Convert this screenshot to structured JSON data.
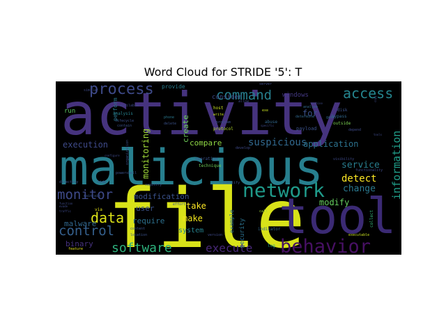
{
  "chart_data": {
    "type": "wordcloud",
    "title": "Word Cloud for STRIDE '5': T",
    "background": "#000000",
    "palette": "viridis",
    "words": [
      {
        "text": "activity",
        "size": 1.0,
        "color": "#46337e"
      },
      {
        "text": "malicious",
        "size": 0.84,
        "color": "#277f8e"
      },
      {
        "text": "file",
        "size": 0.86,
        "color": "#d8e219"
      },
      {
        "text": "tool",
        "size": 0.62,
        "color": "#3b2a74"
      },
      {
        "text": "behavior",
        "size": 0.3,
        "color": "#471063"
      },
      {
        "text": "network",
        "size": 0.32,
        "color": "#1f9a8a"
      },
      {
        "text": "process",
        "size": 0.24,
        "color": "#3e4a89"
      },
      {
        "text": "command",
        "size": 0.22,
        "color": "#277f8e"
      },
      {
        "text": "access",
        "size": 0.22,
        "color": "#25858e"
      },
      {
        "text": "monitor",
        "size": 0.21,
        "color": "#3e4a89"
      },
      {
        "text": "control",
        "size": 0.2,
        "color": "#35608d"
      },
      {
        "text": "data",
        "size": 0.2,
        "color": "#dde318"
      },
      {
        "text": "software",
        "size": 0.19,
        "color": "#2db27d"
      },
      {
        "text": "execute",
        "size": 0.17,
        "color": "#482878"
      },
      {
        "text": "information",
        "size": 0.16,
        "color": "#1f9e89"
      },
      {
        "text": "suspicious",
        "size": 0.15,
        "color": "#31688e"
      },
      {
        "text": "detect",
        "size": 0.14,
        "color": "#fde725"
      },
      {
        "text": "change",
        "size": 0.13,
        "color": "#2a788e"
      },
      {
        "text": "service",
        "size": 0.13,
        "color": "#287d8e"
      },
      {
        "text": "modify",
        "size": 0.12,
        "color": "#65cb5e"
      },
      {
        "text": "application",
        "size": 0.12,
        "color": "#2c728e"
      },
      {
        "text": "execution",
        "size": 0.12,
        "color": "#3e4a89"
      },
      {
        "text": "compare",
        "size": 0.11,
        "color": "#8fd744"
      },
      {
        "text": "modification",
        "size": 0.11,
        "color": "#3b528b"
      },
      {
        "text": "monitoring",
        "size": 0.12,
        "color": "#a0da39"
      },
      {
        "text": "binary",
        "size": 0.11,
        "color": "#46327e"
      },
      {
        "text": "malware",
        "size": 0.1,
        "color": "#31688e"
      },
      {
        "text": "take",
        "size": 0.12,
        "color": "#fde725"
      },
      {
        "text": "make",
        "size": 0.12,
        "color": "#f1e51d"
      },
      {
        "text": "user",
        "size": 0.11,
        "color": "#3b528b"
      },
      {
        "text": "require",
        "size": 0.11,
        "color": "#2d708e"
      },
      {
        "text": "system",
        "size": 0.1,
        "color": "#26828e"
      },
      {
        "text": "for",
        "size": 0.12,
        "color": "#3b528b"
      },
      {
        "text": "create",
        "size": 0.12,
        "color": "#6ece58"
      },
      {
        "text": "windows",
        "size": 0.09,
        "color": "#443983"
      },
      {
        "text": "consider",
        "size": 0.09,
        "color": "#3e4a89"
      },
      {
        "text": "provide",
        "size": 0.08,
        "color": "#287d8e"
      },
      {
        "text": "perform",
        "size": 0.08,
        "color": "#2a788e"
      },
      {
        "text": "run",
        "size": 0.09,
        "color": "#5ec962"
      },
      {
        "text": "security",
        "size": 0.09,
        "color": "#2c728e"
      },
      {
        "text": "example",
        "size": 0.08,
        "color": "#2d708e"
      },
      {
        "text": "payload",
        "size": 0.07,
        "color": "#3b528b"
      },
      {
        "text": "bypass",
        "size": 0.06,
        "color": "#31688e"
      },
      {
        "text": "outside",
        "size": 0.06,
        "color": "#7ad151"
      },
      {
        "text": "abuse",
        "size": 0.06,
        "color": "#31688e"
      },
      {
        "text": "indicator",
        "size": 0.06,
        "color": "#31688e"
      },
      {
        "text": "collect",
        "size": 0.06,
        "color": "#35b779"
      },
      {
        "text": "protocol",
        "size": 0.06,
        "color": "#b5de2b"
      },
      {
        "text": "host",
        "size": 0.06,
        "color": "#c8e020"
      },
      {
        "text": "write",
        "size": 0.05,
        "color": "#c8e020"
      },
      {
        "text": "analyze",
        "size": 0.05,
        "color": "#31688e"
      },
      {
        "text": "analysis",
        "size": 0.06,
        "color": "#26828e"
      },
      {
        "text": "operation",
        "size": 0.06,
        "color": "#3b528b"
      },
      {
        "text": "technique",
        "size": 0.06,
        "color": "#6ece58"
      },
      {
        "text": "effort",
        "size": 0.05,
        "color": "#3b528b"
      },
      {
        "text": "registry",
        "size": 0.05,
        "color": "#3b528b"
      },
      {
        "text": "disk",
        "size": 0.06,
        "color": "#3b528b"
      },
      {
        "text": "visibility",
        "size": 0.05,
        "color": "#3e4a89"
      },
      {
        "text": "functionality",
        "size": 0.05,
        "color": "#3e4a89"
      },
      {
        "text": "depend",
        "size": 0.05,
        "color": "#3e4a89"
      },
      {
        "text": "log",
        "size": 0.06,
        "color": "#20a486"
      },
      {
        "text": "call",
        "size": 0.05,
        "color": "#9fda3a"
      },
      {
        "text": "gain",
        "size": 0.05,
        "color": "#31688e"
      },
      {
        "text": "exe",
        "size": 0.05,
        "color": "#c8e020"
      },
      {
        "text": "determine",
        "size": 0.05,
        "color": "#31688e"
      },
      {
        "text": "program",
        "size": 0.05,
        "color": "#3b528b"
      },
      {
        "text": "delete",
        "size": 0.05,
        "color": "#3b528b"
      },
      {
        "text": "phone",
        "size": 0.05,
        "color": "#2a788e"
      },
      {
        "text": "lifecycle",
        "size": 0.05,
        "color": "#3b528b"
      },
      {
        "text": "contain",
        "size": 0.05,
        "color": "#3b528b"
      },
      {
        "text": "organization",
        "size": 0.05,
        "color": "#3b528b"
      },
      {
        "text": "powershell",
        "size": 0.05,
        "color": "#3b528b"
      },
      {
        "text": "maintain",
        "size": 0.05,
        "color": "#3b528b"
      },
      {
        "text": "hide",
        "size": 0.05,
        "color": "#3b528b"
      },
      {
        "text": "directory",
        "size": 0.05,
        "color": "#3b528b"
      },
      {
        "text": "content",
        "size": 0.05,
        "color": "#3b528b"
      },
      {
        "text": "location",
        "size": 0.05,
        "color": "#3b528b"
      },
      {
        "text": "feature",
        "size": 0.05,
        "color": "#e5e419"
      },
      {
        "text": "via",
        "size": 0.06,
        "color": "#e5e419"
      },
      {
        "text": "identify",
        "size": 0.05,
        "color": "#3b528b"
      },
      {
        "text": "executable",
        "size": 0.05,
        "color": "#c8e020"
      },
      {
        "text": "machine",
        "size": 0.04,
        "color": "#3e4a89"
      },
      {
        "text": "specific",
        "size": 0.04,
        "color": "#3e4a89"
      },
      {
        "text": "develop",
        "size": 0.05,
        "color": "#3e4a89"
      },
      {
        "text": "server",
        "size": 0.05,
        "color": "#3e4a89"
      },
      {
        "text": "allow",
        "size": 0.05,
        "color": "#3e4a89"
      },
      {
        "text": "version",
        "size": 0.05,
        "color": "#3e4a89"
      },
      {
        "text": "similar",
        "size": 0.05,
        "color": "#3e4a89"
      },
      {
        "text": "available",
        "size": 0.05,
        "color": "#3e4a89"
      },
      {
        "text": "tools",
        "size": 0.04,
        "color": "#3e4a89"
      },
      {
        "text": "copy",
        "size": 0.04,
        "color": "#3e4a89"
      },
      {
        "text": "evade",
        "size": 0.04,
        "color": "#3e4a89"
      },
      {
        "text": "traffic",
        "size": 0.04,
        "color": "#3e4a89"
      },
      {
        "text": "function",
        "size": 0.04,
        "color": "#3e4a89"
      },
      {
        "text": "configure",
        "size": 0.04,
        "color": "#3e4a89"
      }
    ]
  }
}
